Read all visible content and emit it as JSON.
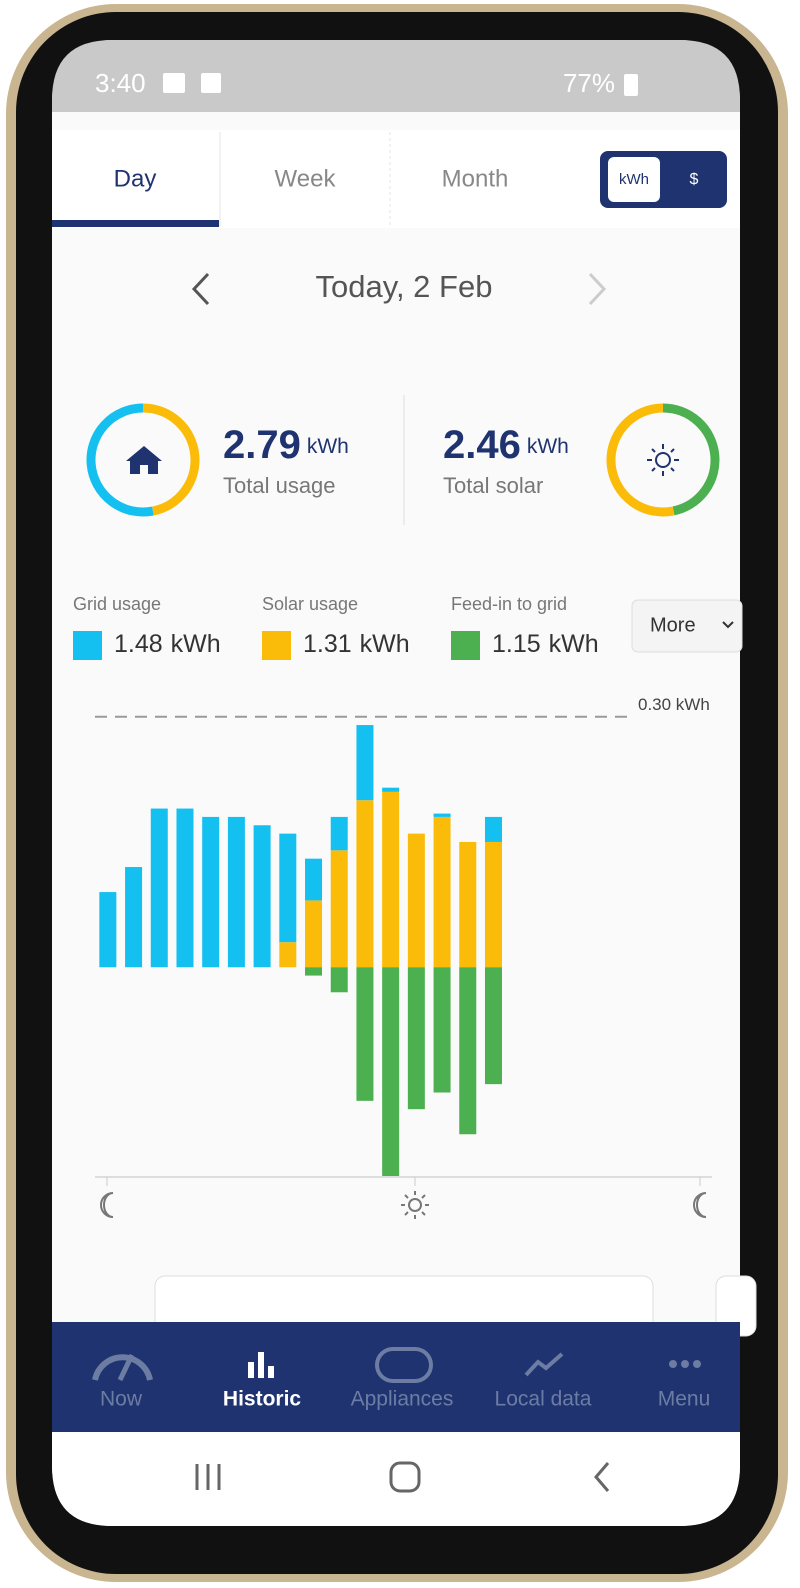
{
  "status_bar": {
    "time": "3:40",
    "battery": "77%"
  },
  "tabs": [
    "Day",
    "Week",
    "Month"
  ],
  "unit_toggle": [
    "kWh",
    "$"
  ],
  "date_label": "Today, 2 Feb",
  "summary": {
    "usage": {
      "value": 2.79,
      "unit": "kWh",
      "label": "Total usage"
    },
    "solar": {
      "value": 2.46,
      "unit": "kWh",
      "label": "Total solar"
    }
  },
  "legend": [
    {
      "name": "Grid usage",
      "value": 1.48,
      "unit": "kWh",
      "color": "#14c0f0"
    },
    {
      "name": "Solar usage",
      "value": 1.31,
      "unit": "kWh",
      "color": "#fbbc09"
    },
    {
      "name": "Feed-in to grid",
      "value": 1.15,
      "unit": "kWh",
      "color": "#4caf50"
    }
  ],
  "more_button": "More",
  "chart_data": {
    "type": "bar",
    "stacked": true,
    "categories": [
      null,
      null,
      null,
      null,
      null,
      null,
      null,
      null,
      null,
      null,
      null,
      null,
      null,
      null,
      null,
      null,
      null,
      null,
      null,
      null,
      null,
      null,
      null,
      null
    ],
    "series": [
      {
        "name": "Solar usage",
        "color": "#fbbc09",
        "values": [
          0,
          0,
          0,
          0,
          0,
          0,
          0,
          0.03,
          0.08,
          0.14,
          0.2,
          0.21,
          0.16,
          0.18,
          0.15,
          0.15,
          null,
          null,
          null,
          null,
          null,
          null,
          null,
          null
        ]
      },
      {
        "name": "Grid usage",
        "color": "#14c0f0",
        "values": [
          0.09,
          0.12,
          0.19,
          0.19,
          0.18,
          0.18,
          0.17,
          0.13,
          0.05,
          0.04,
          0.09,
          0.005,
          0,
          0.004,
          0,
          0.03,
          null,
          null,
          null,
          null,
          null,
          null,
          null,
          null
        ]
      },
      {
        "name": "Feed-in to grid",
        "color": "#4caf50",
        "values": [
          0,
          0,
          0,
          0,
          0,
          0,
          0,
          0,
          -0.01,
          -0.03,
          -0.16,
          -0.25,
          -0.17,
          -0.15,
          -0.2,
          -0.14,
          null,
          null,
          null,
          null,
          null,
          null,
          null,
          null
        ]
      }
    ],
    "ylim": [
      -0.25,
      0.32
    ],
    "reference_line": {
      "value": 0.3,
      "label": "0.30 kWh"
    }
  },
  "nav": [
    "Now",
    "Historic",
    "Appliances",
    "Local data",
    "Menu"
  ]
}
